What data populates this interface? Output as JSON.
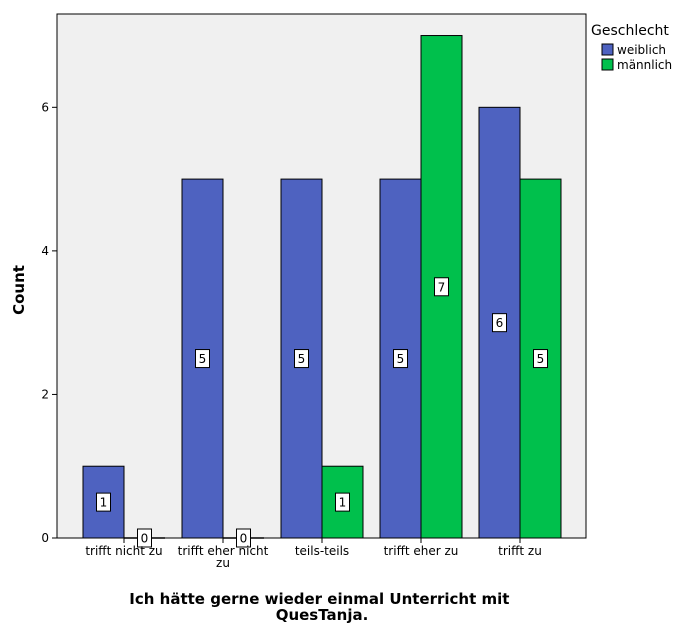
{
  "chart_data": {
    "type": "bar",
    "xlabel": "Ich hätte gerne wieder einmal Unterricht mit QuesTanja.",
    "ylabel": "Count",
    "categories": [
      [
        "trifft nicht zu"
      ],
      [
        "trifft eher nicht",
        "zu"
      ],
      [
        "teils-teils"
      ],
      [
        "trifft eher zu"
      ],
      [
        "trifft zu"
      ]
    ],
    "series": [
      {
        "name": "weiblich",
        "color": "#4e62c0",
        "values": [
          1,
          5,
          5,
          5,
          6
        ]
      },
      {
        "name": "männlich",
        "color": "#00c04c",
        "values": [
          0,
          0,
          1,
          7,
          5
        ]
      }
    ],
    "ylim": [
      0,
      7.3
    ],
    "yticks": [
      0,
      2,
      4,
      6
    ],
    "grid": false,
    "background": "#f0f0f0",
    "legend": {
      "title": "Geschlecht",
      "placement": "top-right"
    }
  }
}
